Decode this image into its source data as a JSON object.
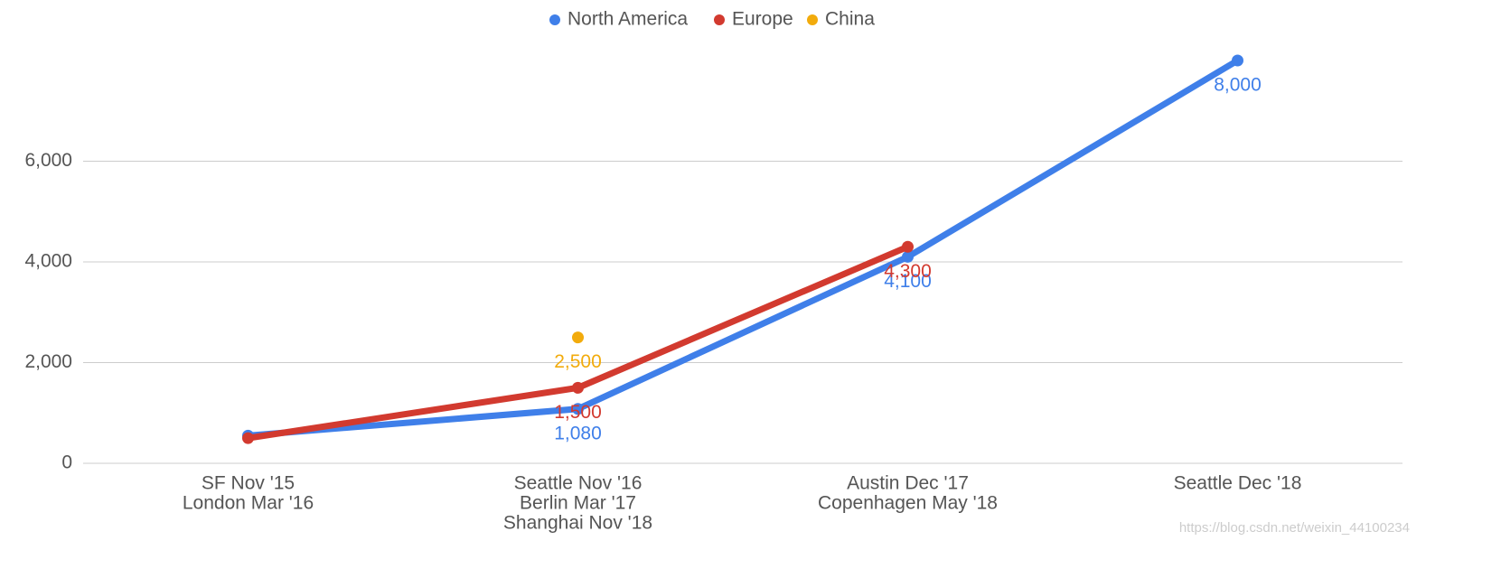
{
  "chart_data": {
    "type": "line",
    "categories": [
      [
        "SF Nov '15",
        "London Mar '16"
      ],
      [
        "Seattle Nov '16",
        "Berlin Mar '17",
        "Shanghai Nov '18"
      ],
      [
        "Austin Dec '17",
        "Copenhagen May '18"
      ],
      [
        "Seattle Dec '18"
      ]
    ],
    "series": [
      {
        "name": "North America",
        "color": "#3f7fe9",
        "values": [
          550,
          1080,
          4100,
          8000
        ],
        "value_labels": [
          null,
          "1,080",
          "4,100",
          "8,000"
        ]
      },
      {
        "name": "Europe",
        "color": "#d23a2f",
        "values": [
          500,
          1500,
          4300,
          null
        ],
        "value_labels": [
          null,
          "1,500",
          "4,300",
          null
        ]
      },
      {
        "name": "China",
        "color": "#f2ab0c",
        "values": [
          null,
          2500,
          null,
          null
        ],
        "value_labels": [
          null,
          "2,500",
          null,
          null
        ]
      }
    ],
    "ylim": [
      0,
      8000
    ],
    "yticks": [
      0,
      {
        "value": 2000,
        "label": "2,000"
      },
      {
        "value": 4000,
        "label": "4,000"
      },
      {
        "value": 6000,
        "label": "6,000"
      }
    ],
    "grid": true,
    "legend": "top",
    "watermark": "https://blog.csdn.net/weixin_44100234"
  }
}
